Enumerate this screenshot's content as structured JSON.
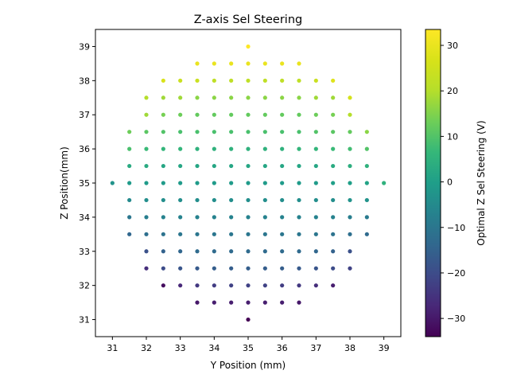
{
  "chart_data": {
    "type": "scatter",
    "title": "Z-axis Sel Steering",
    "xlabel": "Y Position (mm)",
    "ylabel": "Z Position(mm)",
    "xlim": [
      30.5,
      39.5
    ],
    "ylim": [
      30.5,
      39.5
    ],
    "xticks": [
      "31",
      "32",
      "33",
      "34",
      "35",
      "36",
      "37",
      "38",
      "39"
    ],
    "yticks": [
      "31",
      "32",
      "33",
      "34",
      "35",
      "36",
      "37",
      "38",
      "39"
    ],
    "grid": false,
    "colormap": "viridis",
    "colorbar": {
      "label": "Optimal Z Sel Steering (V)",
      "range": [
        -34,
        33.5
      ],
      "ticks": [
        "30",
        "20",
        "10",
        "0",
        "−10",
        "−20",
        "−30"
      ],
      "tick_values": [
        30,
        20,
        10,
        0,
        -10,
        -20,
        -30
      ]
    },
    "points_rule": "grid of Y=31..39 and Z=31..39 in 0.5 mm steps, kept where (Y-35)^2+(Z-35)^2 <= 16.25 and Y,Z not both 0.5 offsets outside; color value = -34 + 8.2*(Z-31) approx",
    "points": [
      {
        "y": 35.0,
        "z": 39.0,
        "v": 33.5
      },
      {
        "y": 33.5,
        "z": 38.5,
        "v": 30
      },
      {
        "y": 34.0,
        "z": 38.5,
        "v": 30
      },
      {
        "y": 34.5,
        "z": 38.5,
        "v": 30
      },
      {
        "y": 35.0,
        "z": 38.5,
        "v": 30
      },
      {
        "y": 35.5,
        "z": 38.5,
        "v": 30
      },
      {
        "y": 36.0,
        "z": 38.5,
        "v": 30
      },
      {
        "y": 36.5,
        "z": 38.5,
        "v": 30
      },
      {
        "y": 32.5,
        "z": 38.0,
        "v": 27
      },
      {
        "y": 33.0,
        "z": 38.0,
        "v": 24
      },
      {
        "y": 33.5,
        "z": 38.0,
        "v": 24
      },
      {
        "y": 34.0,
        "z": 38.0,
        "v": 22
      },
      {
        "y": 34.5,
        "z": 38.0,
        "v": 22
      },
      {
        "y": 35.0,
        "z": 38.0,
        "v": 22
      },
      {
        "y": 35.5,
        "z": 38.0,
        "v": 22
      },
      {
        "y": 36.0,
        "z": 38.0,
        "v": 22
      },
      {
        "y": 36.5,
        "z": 38.0,
        "v": 22
      },
      {
        "y": 37.0,
        "z": 38.0,
        "v": 24
      },
      {
        "y": 37.5,
        "z": 38.0,
        "v": 28
      },
      {
        "y": 32.0,
        "z": 37.5,
        "v": 20
      },
      {
        "y": 32.5,
        "z": 37.5,
        "v": 18
      },
      {
        "y": 33.0,
        "z": 37.5,
        "v": 18
      },
      {
        "y": 33.5,
        "z": 37.5,
        "v": 16
      },
      {
        "y": 34.0,
        "z": 37.5,
        "v": 16
      },
      {
        "y": 34.5,
        "z": 37.5,
        "v": 16
      },
      {
        "y": 35.0,
        "z": 37.5,
        "v": 16
      },
      {
        "y": 35.5,
        "z": 37.5,
        "v": 16
      },
      {
        "y": 36.0,
        "z": 37.5,
        "v": 16
      },
      {
        "y": 36.5,
        "z": 37.5,
        "v": 16
      },
      {
        "y": 37.0,
        "z": 37.5,
        "v": 18
      },
      {
        "y": 37.5,
        "z": 37.5,
        "v": 18
      },
      {
        "y": 38.0,
        "z": 37.5,
        "v": 26
      },
      {
        "y": 32.0,
        "z": 37.0,
        "v": 18
      },
      {
        "y": 32.5,
        "z": 37.0,
        "v": 14
      },
      {
        "y": 33.0,
        "z": 37.0,
        "v": 13
      },
      {
        "y": 33.5,
        "z": 37.0,
        "v": 12
      },
      {
        "y": 34.0,
        "z": 37.0,
        "v": 12
      },
      {
        "y": 34.5,
        "z": 37.0,
        "v": 12
      },
      {
        "y": 35.0,
        "z": 37.0,
        "v": 12
      },
      {
        "y": 35.5,
        "z": 37.0,
        "v": 12
      },
      {
        "y": 36.0,
        "z": 37.0,
        "v": 12
      },
      {
        "y": 36.5,
        "z": 37.0,
        "v": 12
      },
      {
        "y": 37.0,
        "z": 37.0,
        "v": 13
      },
      {
        "y": 37.5,
        "z": 37.0,
        "v": 14
      },
      {
        "y": 38.0,
        "z": 37.0,
        "v": 20
      },
      {
        "y": 31.5,
        "z": 36.5,
        "v": 13
      },
      {
        "y": 32.0,
        "z": 36.5,
        "v": 11
      },
      {
        "y": 32.5,
        "z": 36.5,
        "v": 10
      },
      {
        "y": 33.0,
        "z": 36.5,
        "v": 9
      },
      {
        "y": 33.5,
        "z": 36.5,
        "v": 9
      },
      {
        "y": 34.0,
        "z": 36.5,
        "v": 9
      },
      {
        "y": 34.5,
        "z": 36.5,
        "v": 9
      },
      {
        "y": 35.0,
        "z": 36.5,
        "v": 9
      },
      {
        "y": 35.5,
        "z": 36.5,
        "v": 9
      },
      {
        "y": 36.0,
        "z": 36.5,
        "v": 9
      },
      {
        "y": 36.5,
        "z": 36.5,
        "v": 9
      },
      {
        "y": 37.0,
        "z": 36.5,
        "v": 10
      },
      {
        "y": 37.5,
        "z": 36.5,
        "v": 11
      },
      {
        "y": 38.0,
        "z": 36.5,
        "v": 12
      },
      {
        "y": 38.5,
        "z": 36.5,
        "v": 16
      },
      {
        "y": 31.5,
        "z": 36.0,
        "v": 9
      },
      {
        "y": 32.0,
        "z": 36.0,
        "v": 7
      },
      {
        "y": 32.5,
        "z": 36.0,
        "v": 6
      },
      {
        "y": 33.0,
        "z": 36.0,
        "v": 6
      },
      {
        "y": 33.5,
        "z": 36.0,
        "v": 5
      },
      {
        "y": 34.0,
        "z": 36.0,
        "v": 5
      },
      {
        "y": 34.5,
        "z": 36.0,
        "v": 5
      },
      {
        "y": 35.0,
        "z": 36.0,
        "v": 5
      },
      {
        "y": 35.5,
        "z": 36.0,
        "v": 5
      },
      {
        "y": 36.0,
        "z": 36.0,
        "v": 5
      },
      {
        "y": 36.5,
        "z": 36.0,
        "v": 6
      },
      {
        "y": 37.0,
        "z": 36.0,
        "v": 6
      },
      {
        "y": 37.5,
        "z": 36.0,
        "v": 7
      },
      {
        "y": 38.0,
        "z": 36.0,
        "v": 8
      },
      {
        "y": 38.5,
        "z": 36.0,
        "v": 10
      },
      {
        "y": 31.5,
        "z": 35.5,
        "v": 3
      },
      {
        "y": 32.0,
        "z": 35.5,
        "v": 3
      },
      {
        "y": 32.5,
        "z": 35.5,
        "v": 2
      },
      {
        "y": 33.0,
        "z": 35.5,
        "v": 2
      },
      {
        "y": 33.5,
        "z": 35.5,
        "v": 2
      },
      {
        "y": 34.0,
        "z": 35.5,
        "v": 2
      },
      {
        "y": 34.5,
        "z": 35.5,
        "v": 2
      },
      {
        "y": 35.0,
        "z": 35.5,
        "v": 2
      },
      {
        "y": 35.5,
        "z": 35.5,
        "v": 2
      },
      {
        "y": 36.0,
        "z": 35.5,
        "v": 2
      },
      {
        "y": 36.5,
        "z": 35.5,
        "v": 2
      },
      {
        "y": 37.0,
        "z": 35.5,
        "v": 2
      },
      {
        "y": 37.5,
        "z": 35.5,
        "v": 3
      },
      {
        "y": 38.0,
        "z": 35.5,
        "v": 4
      },
      {
        "y": 38.5,
        "z": 35.5,
        "v": 5
      },
      {
        "y": 31.0,
        "z": 35.0,
        "v": -3
      },
      {
        "y": 31.5,
        "z": 35.0,
        "v": -1
      },
      {
        "y": 32.0,
        "z": 35.0,
        "v": -1
      },
      {
        "y": 32.5,
        "z": 35.0,
        "v": -1
      },
      {
        "y": 33.0,
        "z": 35.0,
        "v": -1
      },
      {
        "y": 33.5,
        "z": 35.0,
        "v": -1
      },
      {
        "y": 34.0,
        "z": 35.0,
        "v": -1
      },
      {
        "y": 34.5,
        "z": 35.0,
        "v": -1
      },
      {
        "y": 35.0,
        "z": 35.0,
        "v": -1
      },
      {
        "y": 35.5,
        "z": 35.0,
        "v": -1
      },
      {
        "y": 36.0,
        "z": 35.0,
        "v": -1
      },
      {
        "y": 36.5,
        "z": 35.0,
        "v": -1
      },
      {
        "y": 37.0,
        "z": 35.0,
        "v": -1
      },
      {
        "y": 37.5,
        "z": 35.0,
        "v": 0
      },
      {
        "y": 38.0,
        "z": 35.0,
        "v": 0
      },
      {
        "y": 38.5,
        "z": 35.0,
        "v": 1
      },
      {
        "y": 39.0,
        "z": 35.0,
        "v": 5
      },
      {
        "y": 31.5,
        "z": 34.5,
        "v": -5
      },
      {
        "y": 32.0,
        "z": 34.5,
        "v": -4
      },
      {
        "y": 32.5,
        "z": 34.5,
        "v": -4
      },
      {
        "y": 33.0,
        "z": 34.5,
        "v": -4
      },
      {
        "y": 33.5,
        "z": 34.5,
        "v": -4
      },
      {
        "y": 34.0,
        "z": 34.5,
        "v": -4
      },
      {
        "y": 34.5,
        "z": 34.5,
        "v": -4
      },
      {
        "y": 35.0,
        "z": 34.5,
        "v": -4
      },
      {
        "y": 35.5,
        "z": 34.5,
        "v": -4
      },
      {
        "y": 36.0,
        "z": 34.5,
        "v": -4
      },
      {
        "y": 36.5,
        "z": 34.5,
        "v": -4
      },
      {
        "y": 37.0,
        "z": 34.5,
        "v": -4
      },
      {
        "y": 37.5,
        "z": 34.5,
        "v": -4
      },
      {
        "y": 38.0,
        "z": 34.5,
        "v": -3
      },
      {
        "y": 38.5,
        "z": 34.5,
        "v": -3
      },
      {
        "y": 31.5,
        "z": 34.0,
        "v": -10
      },
      {
        "y": 32.0,
        "z": 34.0,
        "v": -8
      },
      {
        "y": 32.5,
        "z": 34.0,
        "v": -7
      },
      {
        "y": 33.0,
        "z": 34.0,
        "v": -7
      },
      {
        "y": 33.5,
        "z": 34.0,
        "v": -7
      },
      {
        "y": 34.0,
        "z": 34.0,
        "v": -7
      },
      {
        "y": 34.5,
        "z": 34.0,
        "v": -7
      },
      {
        "y": 35.0,
        "z": 34.0,
        "v": -7
      },
      {
        "y": 35.5,
        "z": 34.0,
        "v": -7
      },
      {
        "y": 36.0,
        "z": 34.0,
        "v": -7
      },
      {
        "y": 36.5,
        "z": 34.0,
        "v": -7
      },
      {
        "y": 37.0,
        "z": 34.0,
        "v": -7
      },
      {
        "y": 37.5,
        "z": 34.0,
        "v": -7
      },
      {
        "y": 38.0,
        "z": 34.0,
        "v": -8
      },
      {
        "y": 38.5,
        "z": 34.0,
        "v": -9
      },
      {
        "y": 31.5,
        "z": 33.5,
        "v": -14
      },
      {
        "y": 32.0,
        "z": 33.5,
        "v": -12
      },
      {
        "y": 32.5,
        "z": 33.5,
        "v": -11
      },
      {
        "y": 33.0,
        "z": 33.5,
        "v": -10
      },
      {
        "y": 33.5,
        "z": 33.5,
        "v": -10
      },
      {
        "y": 34.0,
        "z": 33.5,
        "v": -10
      },
      {
        "y": 34.5,
        "z": 33.5,
        "v": -10
      },
      {
        "y": 35.0,
        "z": 33.5,
        "v": -10
      },
      {
        "y": 35.5,
        "z": 33.5,
        "v": -10
      },
      {
        "y": 36.0,
        "z": 33.5,
        "v": -10
      },
      {
        "y": 36.5,
        "z": 33.5,
        "v": -10
      },
      {
        "y": 37.0,
        "z": 33.5,
        "v": -10
      },
      {
        "y": 37.5,
        "z": 33.5,
        "v": -11
      },
      {
        "y": 38.0,
        "z": 33.5,
        "v": -12
      },
      {
        "y": 38.5,
        "z": 33.5,
        "v": -13
      },
      {
        "y": 32.0,
        "z": 33.0,
        "v": -19
      },
      {
        "y": 32.5,
        "z": 33.0,
        "v": -15
      },
      {
        "y": 33.0,
        "z": 33.0,
        "v": -14
      },
      {
        "y": 33.5,
        "z": 33.0,
        "v": -13
      },
      {
        "y": 34.0,
        "z": 33.0,
        "v": -13
      },
      {
        "y": 34.5,
        "z": 33.0,
        "v": -13
      },
      {
        "y": 35.0,
        "z": 33.0,
        "v": -13
      },
      {
        "y": 35.5,
        "z": 33.0,
        "v": -13
      },
      {
        "y": 36.0,
        "z": 33.0,
        "v": -13
      },
      {
        "y": 36.5,
        "z": 33.0,
        "v": -13
      },
      {
        "y": 37.0,
        "z": 33.0,
        "v": -14
      },
      {
        "y": 37.5,
        "z": 33.0,
        "v": -15
      },
      {
        "y": 38.0,
        "z": 33.0,
        "v": -19
      },
      {
        "y": 32.0,
        "z": 32.5,
        "v": -26
      },
      {
        "y": 32.5,
        "z": 32.5,
        "v": -20
      },
      {
        "y": 33.0,
        "z": 32.5,
        "v": -18
      },
      {
        "y": 33.5,
        "z": 32.5,
        "v": -17
      },
      {
        "y": 34.0,
        "z": 32.5,
        "v": -16
      },
      {
        "y": 34.5,
        "z": 32.5,
        "v": -16
      },
      {
        "y": 35.0,
        "z": 32.5,
        "v": -16
      },
      {
        "y": 35.5,
        "z": 32.5,
        "v": -16
      },
      {
        "y": 36.0,
        "z": 32.5,
        "v": -16
      },
      {
        "y": 36.5,
        "z": 32.5,
        "v": -17
      },
      {
        "y": 37.0,
        "z": 32.5,
        "v": -18
      },
      {
        "y": 37.5,
        "z": 32.5,
        "v": -20
      },
      {
        "y": 38.0,
        "z": 32.5,
        "v": -22
      },
      {
        "y": 32.5,
        "z": 32.0,
        "v": -32
      },
      {
        "y": 33.0,
        "z": 32.0,
        "v": -27
      },
      {
        "y": 33.5,
        "z": 32.0,
        "v": -24
      },
      {
        "y": 34.0,
        "z": 32.0,
        "v": -23
      },
      {
        "y": 34.5,
        "z": 32.0,
        "v": -22
      },
      {
        "y": 35.0,
        "z": 32.0,
        "v": -22
      },
      {
        "y": 35.5,
        "z": 32.0,
        "v": -22
      },
      {
        "y": 36.0,
        "z": 32.0,
        "v": -23
      },
      {
        "y": 36.5,
        "z": 32.0,
        "v": -24
      },
      {
        "y": 37.0,
        "z": 32.0,
        "v": -26
      },
      {
        "y": 37.5,
        "z": 32.0,
        "v": -29
      },
      {
        "y": 33.5,
        "z": 31.5,
        "v": -30
      },
      {
        "y": 34.0,
        "z": 31.5,
        "v": -29
      },
      {
        "y": 34.5,
        "z": 31.5,
        "v": -29
      },
      {
        "y": 35.0,
        "z": 31.5,
        "v": -29
      },
      {
        "y": 35.5,
        "z": 31.5,
        "v": -29
      },
      {
        "y": 36.0,
        "z": 31.5,
        "v": -29
      },
      {
        "y": 36.5,
        "z": 31.5,
        "v": -30
      },
      {
        "y": 35.0,
        "z": 31.0,
        "v": -34
      }
    ]
  }
}
